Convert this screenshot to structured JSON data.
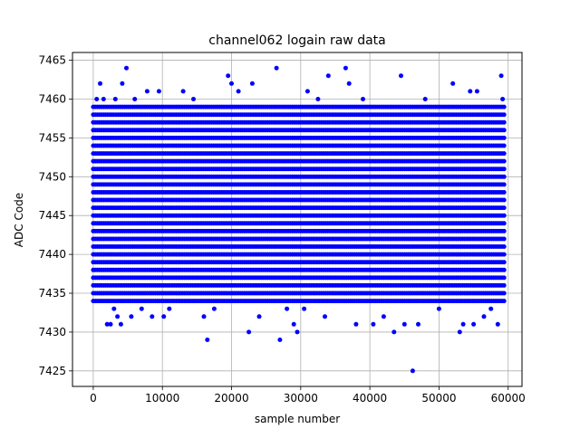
{
  "chart_data": {
    "type": "scatter",
    "title": "channel062 logain raw data",
    "xlabel": "sample number",
    "ylabel": "ADC Code",
    "xlim": [
      -3000,
      62000
    ],
    "ylim": [
      7423,
      7466
    ],
    "xticks": [
      0,
      10000,
      20000,
      30000,
      40000,
      50000,
      60000
    ],
    "xtick_labels": [
      "0",
      "10000",
      "20000",
      "30000",
      "40000",
      "50000",
      "60000"
    ],
    "yticks": [
      7425,
      7430,
      7435,
      7440,
      7445,
      7450,
      7455,
      7460,
      7465
    ],
    "ytick_labels": [
      "7425",
      "7430",
      "7435",
      "7440",
      "7445",
      "7450",
      "7455",
      "7460",
      "7465"
    ],
    "grid": true,
    "marker_color": "#0000ff",
    "x_range": [
      0,
      59500
    ],
    "y_value_set": [
      7434,
      7435,
      7436,
      7437,
      7438,
      7439,
      7440,
      7441,
      7442,
      7443,
      7444,
      7445,
      7446,
      7447,
      7448,
      7449,
      7450,
      7451,
      7452,
      7453,
      7454,
      7455,
      7456,
      7457,
      7458,
      7459
    ],
    "outliers": [
      {
        "x": 500,
        "y": 7460
      },
      {
        "x": 1000,
        "y": 7462
      },
      {
        "x": 1500,
        "y": 7460
      },
      {
        "x": 2000,
        "y": 7431
      },
      {
        "x": 2500,
        "y": 7431
      },
      {
        "x": 3000,
        "y": 7433
      },
      {
        "x": 3200,
        "y": 7460
      },
      {
        "x": 3500,
        "y": 7432
      },
      {
        "x": 4000,
        "y": 7431
      },
      {
        "x": 4200,
        "y": 7462
      },
      {
        "x": 4800,
        "y": 7464
      },
      {
        "x": 5500,
        "y": 7432
      },
      {
        "x": 6000,
        "y": 7460
      },
      {
        "x": 7000,
        "y": 7433
      },
      {
        "x": 7800,
        "y": 7461
      },
      {
        "x": 8500,
        "y": 7432
      },
      {
        "x": 9500,
        "y": 7461
      },
      {
        "x": 10200,
        "y": 7432
      },
      {
        "x": 11000,
        "y": 7433
      },
      {
        "x": 13000,
        "y": 7461
      },
      {
        "x": 14500,
        "y": 7460
      },
      {
        "x": 16000,
        "y": 7432
      },
      {
        "x": 16500,
        "y": 7429
      },
      {
        "x": 17500,
        "y": 7433
      },
      {
        "x": 19500,
        "y": 7463
      },
      {
        "x": 20000,
        "y": 7462
      },
      {
        "x": 21000,
        "y": 7461
      },
      {
        "x": 22500,
        "y": 7430
      },
      {
        "x": 23000,
        "y": 7462
      },
      {
        "x": 24000,
        "y": 7432
      },
      {
        "x": 26500,
        "y": 7464
      },
      {
        "x": 27000,
        "y": 7429
      },
      {
        "x": 28000,
        "y": 7433
      },
      {
        "x": 29000,
        "y": 7431
      },
      {
        "x": 29500,
        "y": 7430
      },
      {
        "x": 30500,
        "y": 7433
      },
      {
        "x": 31000,
        "y": 7461
      },
      {
        "x": 32500,
        "y": 7460
      },
      {
        "x": 33500,
        "y": 7432
      },
      {
        "x": 34000,
        "y": 7463
      },
      {
        "x": 36500,
        "y": 7464
      },
      {
        "x": 37000,
        "y": 7462
      },
      {
        "x": 38000,
        "y": 7431
      },
      {
        "x": 39000,
        "y": 7460
      },
      {
        "x": 40500,
        "y": 7431
      },
      {
        "x": 42000,
        "y": 7432
      },
      {
        "x": 43500,
        "y": 7430
      },
      {
        "x": 44500,
        "y": 7463
      },
      {
        "x": 45000,
        "y": 7431
      },
      {
        "x": 46200,
        "y": 7425
      },
      {
        "x": 47000,
        "y": 7431
      },
      {
        "x": 48000,
        "y": 7460
      },
      {
        "x": 50000,
        "y": 7433
      },
      {
        "x": 52000,
        "y": 7462
      },
      {
        "x": 53000,
        "y": 7430
      },
      {
        "x": 53500,
        "y": 7431
      },
      {
        "x": 54500,
        "y": 7461
      },
      {
        "x": 55000,
        "y": 7431
      },
      {
        "x": 55500,
        "y": 7461
      },
      {
        "x": 56500,
        "y": 7432
      },
      {
        "x": 57500,
        "y": 7433
      },
      {
        "x": 58500,
        "y": 7431
      },
      {
        "x": 59000,
        "y": 7463
      },
      {
        "x": 59200,
        "y": 7460
      }
    ]
  }
}
